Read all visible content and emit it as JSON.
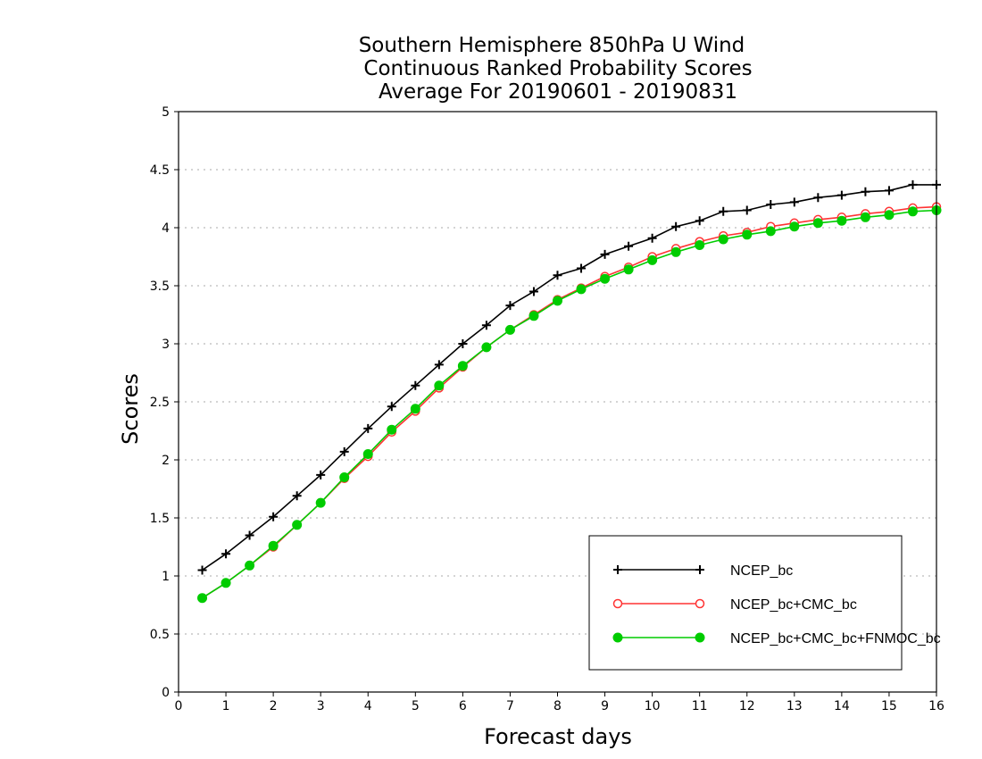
{
  "chart_data": {
    "type": "line",
    "title_lines": [
      "Southern Hemisphere 850hPa U Wind",
      "Continuous Ranked Probability Scores",
      "Average For 20190601 - 20190831"
    ],
    "xlabel": "Forecast days",
    "ylabel": "Scores",
    "xlim": [
      0,
      16
    ],
    "ylim": [
      0,
      5
    ],
    "xticks": [
      "0",
      "1",
      "2",
      "3",
      "4",
      "5",
      "6",
      "7",
      "8",
      "9",
      "10",
      "11",
      "12",
      "13",
      "14",
      "15",
      "16"
    ],
    "yticks": [
      "0",
      "0.5",
      "1",
      "1.5",
      "2",
      "2.5",
      "3",
      "3.5",
      "4",
      "4.5",
      "5"
    ],
    "grid": "dotted horizontal",
    "legend_position": "lower-right",
    "x": [
      0.5,
      1,
      1.5,
      2,
      2.5,
      3,
      3.5,
      4,
      4.5,
      5,
      5.5,
      6,
      6.5,
      7,
      7.5,
      8,
      8.5,
      9,
      9.5,
      10,
      10.5,
      11,
      11.5,
      12,
      12.5,
      13,
      13.5,
      14,
      14.5,
      15,
      15.5,
      16
    ],
    "series": [
      {
        "name": "NCEP_bc",
        "color": "#000000",
        "marker": "plus",
        "values": [
          1.05,
          1.19,
          1.35,
          1.51,
          1.69,
          1.87,
          2.07,
          2.27,
          2.46,
          2.64,
          2.82,
          3.0,
          3.16,
          3.33,
          3.45,
          3.59,
          3.65,
          3.77,
          3.84,
          3.91,
          4.01,
          4.06,
          4.14,
          4.15,
          4.2,
          4.22,
          4.26,
          4.28,
          4.31,
          4.32,
          4.37,
          4.37
        ]
      },
      {
        "name": "NCEP_bc+CMC_bc",
        "color": "#ff3333",
        "marker": "open-circle",
        "values": [
          0.81,
          0.94,
          1.09,
          1.25,
          1.44,
          1.63,
          1.84,
          2.03,
          2.24,
          2.42,
          2.62,
          2.8,
          2.97,
          3.12,
          3.25,
          3.38,
          3.48,
          3.58,
          3.66,
          3.75,
          3.82,
          3.88,
          3.93,
          3.96,
          4.01,
          4.04,
          4.07,
          4.09,
          4.12,
          4.14,
          4.17,
          4.18
        ]
      },
      {
        "name": "NCEP_bc+CMC_bc+FNMOC_bc",
        "color": "#00cc00",
        "marker": "filled-circle",
        "values": [
          0.81,
          0.94,
          1.09,
          1.26,
          1.44,
          1.63,
          1.85,
          2.05,
          2.26,
          2.44,
          2.64,
          2.81,
          2.97,
          3.12,
          3.24,
          3.37,
          3.47,
          3.56,
          3.64,
          3.72,
          3.79,
          3.85,
          3.9,
          3.94,
          3.97,
          4.01,
          4.04,
          4.06,
          4.09,
          4.11,
          4.14,
          4.15
        ]
      }
    ]
  }
}
